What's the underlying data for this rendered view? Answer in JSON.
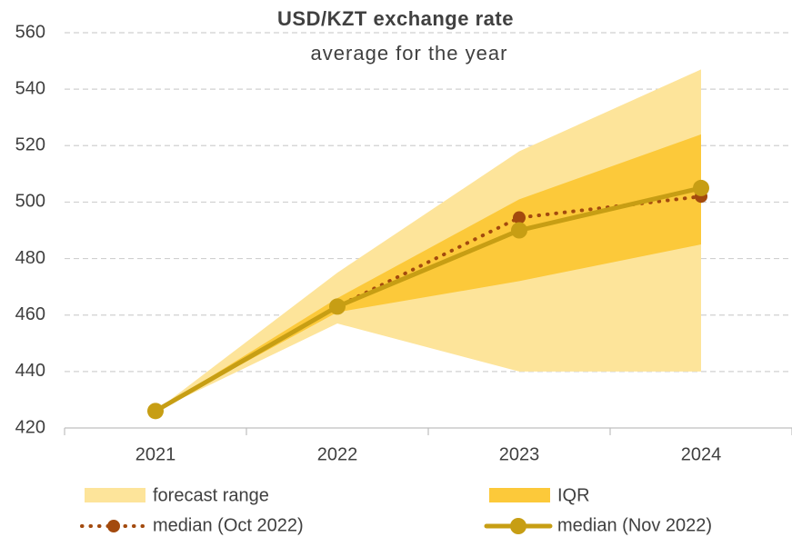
{
  "chart_data": {
    "type": "fan",
    "title": "USD/KZT exchange rate",
    "subtitle": "average for the year",
    "categories": [
      "2021",
      "2022",
      "2023",
      "2024"
    ],
    "bands": [
      {
        "name": "forecast range",
        "color": "#fde49a",
        "low": [
          426,
          457,
          440,
          440
        ],
        "high": [
          426,
          475,
          518,
          547
        ]
      },
      {
        "name": "IQR",
        "color": "#fcc93a",
        "low": [
          426,
          461,
          472,
          485
        ],
        "high": [
          426,
          466,
          501,
          524
        ]
      }
    ],
    "series": [
      {
        "name": "median (Oct 2022)",
        "color": "#a34a0e",
        "style": "dotted",
        "values": [
          426,
          463,
          494.5,
          502
        ]
      },
      {
        "name": "median (Nov 2022)",
        "color": "#c79e14",
        "style": "solid",
        "values": [
          426,
          463,
          490,
          505
        ]
      }
    ],
    "ylim": [
      420,
      560
    ],
    "yticks": [
      420,
      440,
      460,
      480,
      500,
      520,
      540,
      560
    ],
    "grid": true
  }
}
